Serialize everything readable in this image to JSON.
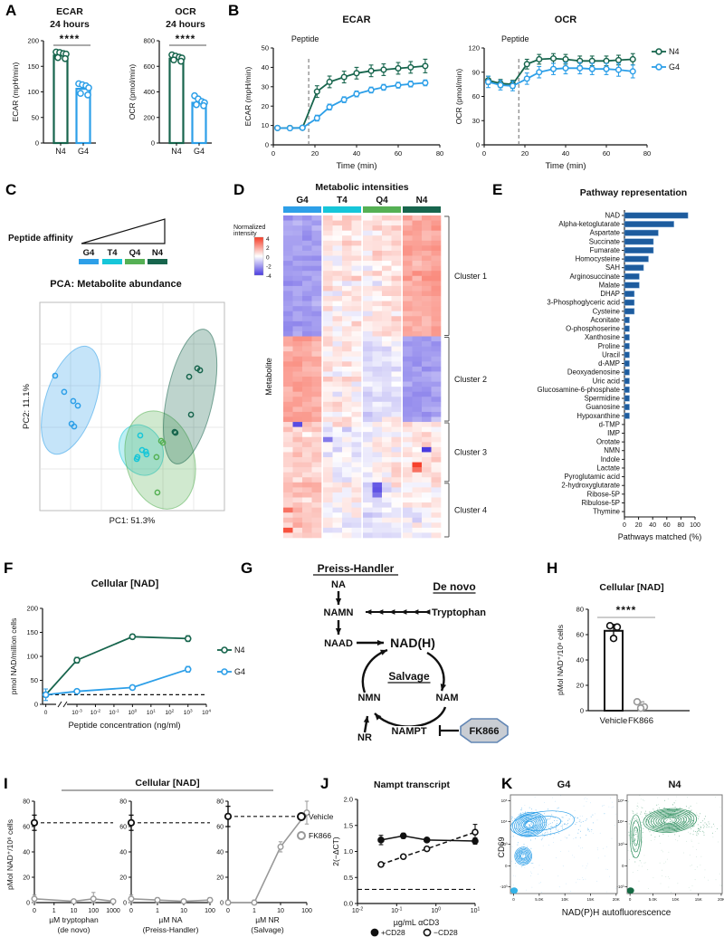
{
  "letters": {
    "a": "A",
    "b": "B",
    "c": "C",
    "d": "D",
    "e": "E",
    "f": "F",
    "g": "G",
    "h": "H",
    "i": "I",
    "j": "J",
    "k": "K"
  },
  "colors": {
    "N4": "#17654d",
    "G4": "#2d9fe8",
    "T4": "#16c6d9",
    "Q4": "#55b054",
    "gray": "#999999",
    "black": "#111111"
  },
  "panelA": {
    "charts": [
      {
        "title": [
          "ECAR",
          "24 hours"
        ],
        "sig": "****",
        "ylabel": "ECAR (mpH/min)",
        "ymax": 200,
        "yticks": [
          0,
          50,
          100,
          150,
          200
        ],
        "bars": [
          {
            "group": "N4",
            "value": 171,
            "points": [
              178,
              177,
              175,
              174,
              167,
              165
            ]
          },
          {
            "group": "G4",
            "value": 106,
            "points": [
              116,
              114,
              112,
              108,
              97,
              94
            ]
          }
        ]
      },
      {
        "title": [
          "OCR",
          "24 hours"
        ],
        "sig": "****",
        "ylabel": "OCR (pmol/min)",
        "ymax": 800,
        "yticks": [
          0,
          200,
          400,
          600,
          800
        ],
        "bars": [
          {
            "group": "N4",
            "value": 660,
            "points": [
              690,
              680,
              672,
              665,
              650,
              640
            ]
          },
          {
            "group": "G4",
            "value": 315,
            "points": [
              370,
              345,
              325,
              315,
              300,
              292
            ]
          }
        ]
      }
    ]
  },
  "panelB": {
    "xlabel": "Time (min)",
    "x_max": 80,
    "xticks": [
      0,
      20,
      40,
      60,
      80
    ],
    "x_values": [
      2,
      8,
      14,
      21,
      27,
      34,
      40,
      47,
      53,
      60,
      66,
      73
    ],
    "injection": {
      "label": "Peptide",
      "time": 17
    },
    "legend": [
      "N4",
      "G4"
    ],
    "charts": [
      {
        "title": "ECAR",
        "ylabel": "ECAR (mpH/min)",
        "ymax": 50,
        "yticks": [
          0,
          10,
          20,
          30,
          40,
          50
        ],
        "series": [
          {
            "name": "N4",
            "values": [
              8.7,
              8.7,
              8.8,
              27.5,
              32.5,
              35,
              37,
              38.2,
              38.8,
              39.5,
              40,
              40.7
            ],
            "err": [
              1,
              1,
              1,
              3,
              3,
              3,
              3,
              3,
              3,
              3,
              3,
              3.5
            ]
          },
          {
            "name": "G4",
            "values": [
              8.7,
              8.6,
              8.8,
              13.8,
              19.5,
              23.3,
              26.3,
              28.3,
              29.7,
              30.8,
              31.4,
              32
            ],
            "err": [
              1,
              1,
              1,
              1.5,
              1.5,
              1.5,
              1.5,
              1.5,
              1.5,
              1.5,
              1.5,
              1.5
            ]
          }
        ]
      },
      {
        "title": "OCR",
        "ylabel": "OCR (pmol/min)",
        "ymax": 120,
        "yticks": [
          0,
          30,
          60,
          90,
          120
        ],
        "series": [
          {
            "name": "N4",
            "values": [
              80,
              76,
              75,
              100,
              106,
              107,
              106,
              104,
              104,
              104,
              105,
              106
            ],
            "err": [
              5,
              5,
              5,
              6,
              6,
              6,
              6,
              6,
              6,
              6,
              6,
              7
            ]
          },
          {
            "name": "G4",
            "values": [
              78,
              74,
              73,
              82,
              90,
              94,
              95,
              95,
              94,
              94,
              93,
              91
            ],
            "err": [
              7,
              6,
              6,
              7,
              7,
              7,
              7,
              7,
              7,
              7,
              8,
              8
            ]
          }
        ]
      }
    ]
  },
  "panelC": {
    "affinity_label": "Peptide affinity",
    "groups": [
      "G4",
      "T4",
      "Q4",
      "N4"
    ],
    "title": "PCA: Metabolite abundance",
    "xlabel": "PC1: 51.3%",
    "ylabel": "PC2: 11.1%",
    "points": {
      "G4": [
        [
          0.083,
          0.352
        ],
        [
          0.132,
          0.43
        ],
        [
          0.181,
          0.474
        ],
        [
          0.206,
          0.496
        ],
        [
          0.172,
          0.583
        ],
        [
          0.186,
          0.596
        ]
      ],
      "T4": [
        [
          0.544,
          0.639
        ],
        [
          0.554,
          0.709
        ],
        [
          0.578,
          0.73
        ],
        [
          0.529,
          0.743
        ],
        [
          0.574,
          0.717
        ],
        [
          0.525,
          0.752
        ]
      ],
      "Q4": [
        [
          0.657,
          0.665
        ],
        [
          0.667,
          0.674
        ],
        [
          0.632,
          0.743
        ],
        [
          0.637,
          0.913
        ]
      ],
      "N4": [
        [
          0.809,
          0.357
        ],
        [
          0.853,
          0.317
        ],
        [
          0.868,
          0.326
        ],
        [
          0.819,
          0.539
        ],
        [
          0.73,
          0.622
        ],
        [
          0.735,
          0.626
        ]
      ]
    },
    "ellipses": [
      {
        "group": "G4",
        "c": [
          0.167,
          0.47
        ],
        "r": [
          0.135,
          0.27
        ],
        "rot": 18
      },
      {
        "group": "T4",
        "c": [
          0.549,
          0.709
        ],
        "r": [
          0.115,
          0.125
        ],
        "rot": -25
      },
      {
        "group": "Q4",
        "c": [
          0.652,
          0.757
        ],
        "r": [
          0.185,
          0.24
        ],
        "rot": -15
      },
      {
        "group": "N4",
        "c": [
          0.814,
          0.452
        ],
        "r": [
          0.125,
          0.33
        ],
        "rot": 12
      }
    ]
  },
  "panelD": {
    "title": "Metabolic intensities",
    "legend_title": [
      "Normalized",
      "intensity"
    ],
    "legend_ticks": [
      4,
      2,
      0,
      -2,
      -4
    ],
    "ylabel": "Metabolite",
    "groups": [
      "G4",
      "T4",
      "Q4",
      "N4"
    ],
    "reps_per_group": 4,
    "clusters": [
      {
        "name": "Cluster 1",
        "rows": 24,
        "means": [
          -1.6,
          0.2,
          0.15,
          1.4
        ]
      },
      {
        "name": "Cluster 2",
        "rows": 17,
        "means": [
          1.4,
          0.25,
          -0.35,
          -1.5
        ]
      },
      {
        "name": "Cluster 3",
        "rows": 12,
        "means": [
          0.6,
          -0.1,
          0.0,
          0.4
        ]
      },
      {
        "name": "Cluster 4",
        "rows": 11,
        "means": [
          0.9,
          0.1,
          -0.3,
          0.1
        ]
      }
    ],
    "outliers": [
      [
        41,
        1,
        -3.6
      ],
      [
        46,
        14,
        -4
      ],
      [
        49,
        13,
        3.8
      ],
      [
        50,
        13,
        2.6
      ],
      [
        53,
        9,
        -3.2
      ],
      [
        54,
        9,
        -3.4
      ],
      [
        55,
        9,
        -2.6
      ],
      [
        58,
        0,
        2.6
      ],
      [
        62,
        0,
        3.4
      ],
      [
        44,
        4,
        -2.4
      ]
    ],
    "pos_color": "#f63b25",
    "neg_color": "#4a3ce0"
  },
  "panelE": {
    "title": "Pathway representation",
    "xlabel": "Pathways matched (%)",
    "xticks": [
      0,
      20,
      40,
      60,
      80,
      100
    ],
    "bar_color": "#1d5c9e",
    "items": [
      {
        "label": "NAD",
        "value": 90
      },
      {
        "label": "Alpha-ketoglutarate",
        "value": 70
      },
      {
        "label": "Aspartate",
        "value": 48
      },
      {
        "label": "Succinate",
        "value": 41
      },
      {
        "label": "Fumarate",
        "value": 41
      },
      {
        "label": "Homocysteine",
        "value": 34
      },
      {
        "label": "SAH",
        "value": 27
      },
      {
        "label": "Arginosuccinate",
        "value": 21
      },
      {
        "label": "Malate",
        "value": 21
      },
      {
        "label": "DHAP",
        "value": 14
      },
      {
        "label": "3-Phosphoglyceric acid",
        "value": 14
      },
      {
        "label": "Cysteine",
        "value": 14
      },
      {
        "label": "Aconitate",
        "value": 7
      },
      {
        "label": "O-phosphoserine",
        "value": 7
      },
      {
        "label": "Xanthosine",
        "value": 7
      },
      {
        "label": "Proline",
        "value": 7
      },
      {
        "label": "Uracil",
        "value": 7
      },
      {
        "label": "d-AMP",
        "value": 7
      },
      {
        "label": "Deoxyadenosine",
        "value": 7
      },
      {
        "label": "Uric acid",
        "value": 7
      },
      {
        "label": "Glucosamine-6-phosphate",
        "value": 7
      },
      {
        "label": "Spermidine",
        "value": 7
      },
      {
        "label": "Guanosine",
        "value": 7
      },
      {
        "label": "Hypoxanthine",
        "value": 7
      },
      {
        "label": "d-TMP",
        "value": 0
      },
      {
        "label": "IMP",
        "value": 0
      },
      {
        "label": "Orotate",
        "value": 0
      },
      {
        "label": "NMN",
        "value": 0
      },
      {
        "label": "Indole",
        "value": 0
      },
      {
        "label": "Lactate",
        "value": 0
      },
      {
        "label": "Pyroglutamic acid",
        "value": 0
      },
      {
        "label": "2-hydroxyglutarate",
        "value": 0
      },
      {
        "label": "Ribose-5P",
        "value": 0
      },
      {
        "label": "Ribulose-5P",
        "value": 0
      },
      {
        "label": "Thymine",
        "value": 0
      }
    ]
  },
  "panelF": {
    "title": "Cellular [NAD]",
    "ylabel": "pmol NAD/million cells",
    "xlabel": "Peptide concentration (ng/ml)",
    "ymax": 200,
    "yticks": [
      0,
      50,
      100,
      150,
      200
    ],
    "dash": 20,
    "xticks": [
      {
        "f": 0.02,
        "label": "0"
      },
      {
        "f": 0.21,
        "label": "10^-3"
      },
      {
        "f": 0.323,
        "label": "10^-2"
      },
      {
        "f": 0.436,
        "label": "10^-1"
      },
      {
        "f": 0.549,
        "label": "10^0"
      },
      {
        "f": 0.662,
        "label": "10^1"
      },
      {
        "f": 0.775,
        "label": "10^2"
      },
      {
        "f": 0.888,
        "label": "10^3"
      },
      {
        "f": 1,
        "label": "10^4"
      }
    ],
    "series": [
      {
        "name": "N4",
        "fracs": [
          0.02,
          0.21,
          0.549,
          0.888
        ],
        "x_values": [
          0,
          0.001,
          1,
          1000
        ],
        "values": [
          20,
          92,
          141,
          137
        ],
        "err": [
          4,
          6,
          5,
          6
        ]
      },
      {
        "name": "G4",
        "fracs": [
          0.02,
          0.21,
          0.549,
          0.888
        ],
        "x_values": [
          0,
          0.001,
          1,
          1000
        ],
        "values": [
          20,
          27,
          35,
          73
        ],
        "err": [
          12,
          3,
          3,
          6
        ]
      }
    ]
  },
  "panelG": {
    "pathway1": "Preiss-Handler",
    "pathway2": "De novo",
    "pathway3": "Salvage",
    "nodes": {
      "na": "NA",
      "namn": "NAMN",
      "naad": "NAAD",
      "nad": "NAD(H)",
      "trp": "Tryptophan",
      "nmn": "NMN",
      "nam": "NAM",
      "nampt": "NAMPT",
      "nr": "NR",
      "fk866": "FK866"
    }
  },
  "panelH": {
    "title": "Cellular [NAD]",
    "ylabel": "pMol NAD⁺/10⁶ cells",
    "ymax": 80,
    "yticks": [
      0,
      20,
      40,
      60,
      80
    ],
    "sig": "****",
    "bars": [
      {
        "label": "Vehicle",
        "color": "#111111",
        "mean": 63,
        "err": 5,
        "bar": true,
        "points": [
          67,
          66,
          57
        ]
      },
      {
        "label": "FK866",
        "color": "#999999",
        "mean": 4,
        "err": 3,
        "bar": false,
        "points": [
          7,
          3,
          2
        ]
      }
    ]
  },
  "panelI": {
    "title": "Cellular [NAD]",
    "ylabel": "pMol NAD⁺/10⁶ cells",
    "ymax": 80,
    "yticks": [
      0,
      20,
      40,
      60,
      80
    ],
    "legend": [
      {
        "label": "Vehicle",
        "color": "#111111"
      },
      {
        "label": "FK866",
        "color": "#999999"
      }
    ],
    "plots": [
      {
        "xticks": [
          "0",
          "1",
          "10",
          "100",
          "1000"
        ],
        "xlabel": [
          "µM tryptophan",
          "(de novo)"
        ],
        "dash": 63,
        "vehicle": {
          "frac": 0,
          "value": 63,
          "err": 6
        },
        "fk866": {
          "fracs": [
            0,
            0.5,
            0.75,
            1
          ],
          "x_values": [
            0,
            10,
            100,
            1000
          ],
          "values": [
            3,
            1,
            3,
            1
          ],
          "err": [
            3,
            1,
            5,
            1
          ]
        }
      },
      {
        "xticks": [
          "0",
          "1",
          "10",
          "100"
        ],
        "xlabel": [
          "µM NA",
          "(Preiss-Handler)"
        ],
        "dash": 63,
        "vehicle": {
          "frac": 0,
          "value": 63,
          "err": 6
        },
        "fk866": {
          "fracs": [
            0,
            0.333,
            0.667,
            1
          ],
          "x_values": [
            0,
            1,
            10,
            100
          ],
          "values": [
            3,
            2,
            1,
            2
          ],
          "err": [
            3,
            2,
            1,
            2
          ]
        }
      },
      {
        "xticks": [
          "0",
          "1",
          "10",
          "100"
        ],
        "xlabel": [
          "µM NR",
          "(Salvage)"
        ],
        "dash": 68,
        "vehicle": {
          "frac": 0,
          "value": 68,
          "err": 8
        },
        "fk866": {
          "fracs": [
            0,
            0.333,
            0.667,
            1
          ],
          "x_values": [
            0,
            1,
            10,
            100
          ],
          "values": [
            0,
            0,
            44,
            71
          ],
          "err": [
            2,
            2,
            4,
            9
          ]
        }
      }
    ]
  },
  "panelJ": {
    "title": "Nampt transcript",
    "ylabel": "2(−ΔCT)",
    "xlabel": "µg/mL αCD3",
    "ymax": 2,
    "yticks": [
      "0.0",
      "0.5",
      "1.0",
      "1.5",
      "2.0"
    ],
    "xticks": [
      {
        "f": 0,
        "label": "10^-2"
      },
      {
        "f": 0.333,
        "label": "10^-1"
      },
      {
        "f": 0.667,
        "label": "10^0"
      },
      {
        "f": 1,
        "label": "10^1"
      }
    ],
    "dash": 0.27,
    "series": [
      {
        "name": "+CD28",
        "filled": true,
        "dashed": false,
        "fracs": [
          0.2,
          0.39,
          0.59,
          1
        ],
        "x_values": [
          0.04,
          0.15,
          0.6,
          10
        ],
        "values": [
          1.22,
          1.3,
          1.22,
          1.2
        ],
        "err": [
          0.09,
          0.05,
          0.04,
          0.06
        ]
      },
      {
        "name": "−CD28",
        "filled": false,
        "dashed": true,
        "fracs": [
          0.2,
          0.39,
          0.59,
          1
        ],
        "x_values": [
          0.04,
          0.15,
          0.6,
          10
        ],
        "values": [
          0.75,
          0.9,
          1.05,
          1.37
        ],
        "err": [
          0.04,
          0.04,
          0.03,
          0.15
        ]
      }
    ]
  },
  "panelK": {
    "titles": [
      "G4",
      "N4"
    ],
    "xlabel": "NAD(P)H autofluorescence",
    "ylabel": "CD69",
    "xticks": [
      "0",
      "5.0K",
      "10K",
      "15K",
      "20K"
    ],
    "yticks": [
      "10⁵",
      "10⁴",
      "10³",
      "0",
      "-10³"
    ],
    "plots": [
      {
        "blobs": [
          {
            "c": [
              0.18,
              0.3
            ],
            "r": [
              0.16,
              0.12
            ],
            "rot": -12,
            "rings": 8,
            "n": 200
          },
          {
            "c": [
              0.3,
              0.29
            ],
            "r": [
              0.3,
              0.12
            ],
            "rot": -8,
            "rings": 2,
            "n": 60
          },
          {
            "c": [
              0.12,
              0.62
            ],
            "r": [
              0.08,
              0.09
            ],
            "rot": 0,
            "rings": 6,
            "n": 80
          },
          {
            "c": [
              0.55,
              0.3
            ],
            "r": [
              0.25,
              0.1
            ],
            "rot": 0,
            "rings": 0,
            "n": 60
          }
        ]
      },
      {
        "blobs": [
          {
            "c": [
              0.45,
              0.26
            ],
            "r": [
              0.28,
              0.12
            ],
            "rot": -4,
            "rings": 9,
            "n": 260
          },
          {
            "c": [
              0.09,
              0.42
            ],
            "r": [
              0.06,
              0.22
            ],
            "rot": 0,
            "rings": 3,
            "n": 70
          },
          {
            "c": [
              0.75,
              0.3
            ],
            "r": [
              0.18,
              0.1
            ],
            "rot": 0,
            "rings": 0,
            "n": 50
          }
        ]
      }
    ]
  }
}
